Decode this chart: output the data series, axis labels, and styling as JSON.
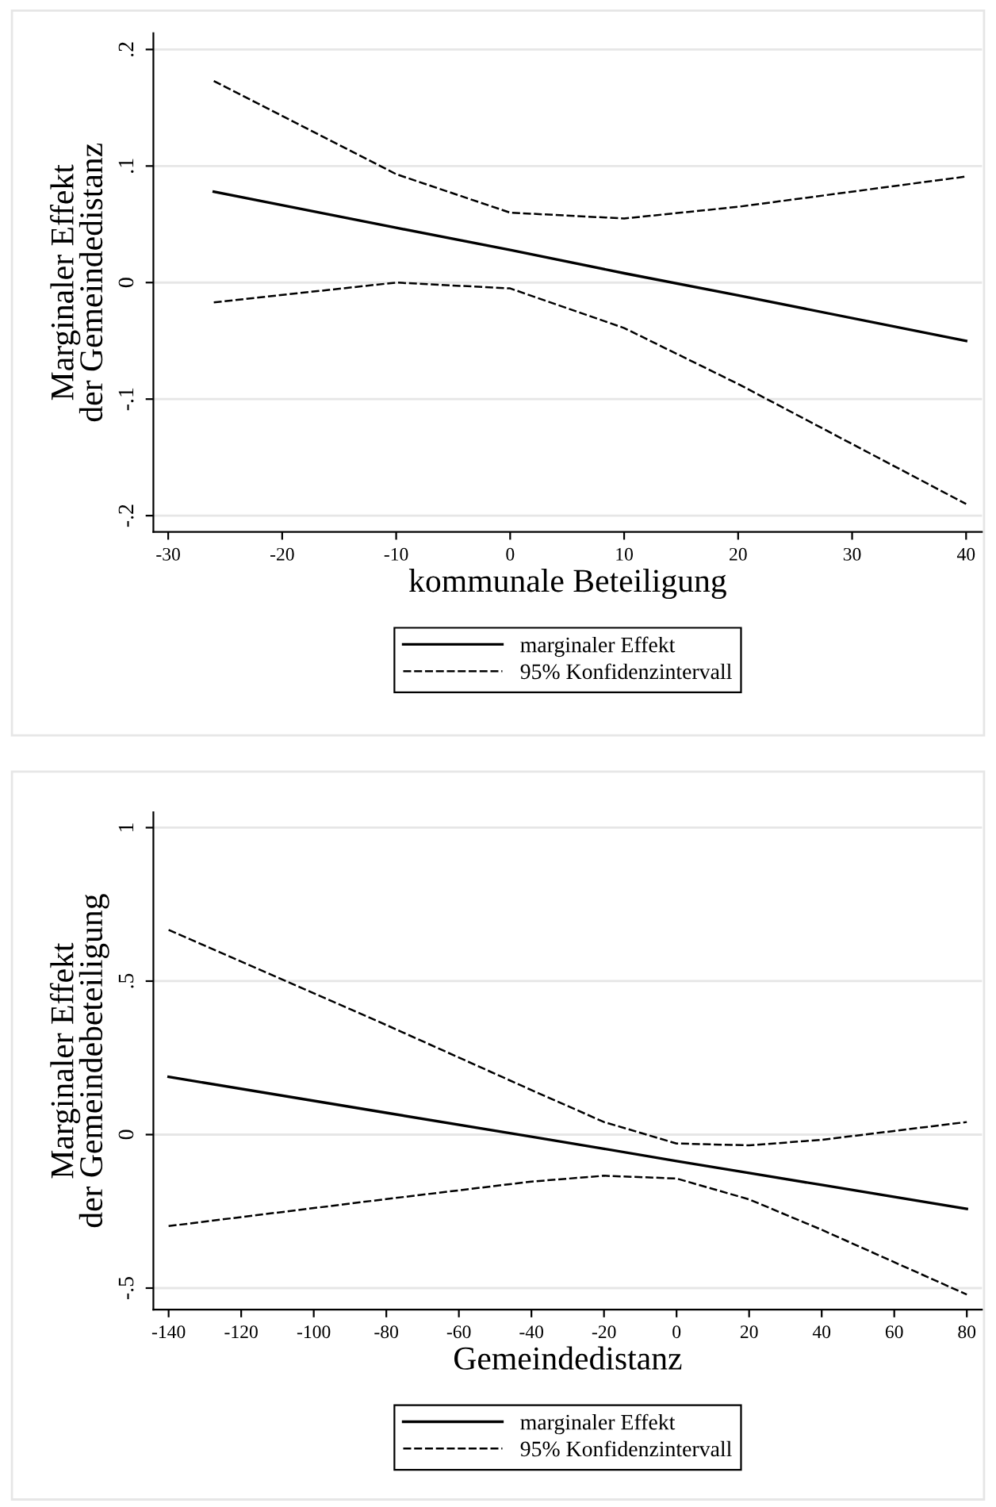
{
  "chart_data": [
    {
      "type": "line",
      "xlabel": "kommunale Beteiligung",
      "ylabel": "Marginaler Effekt\nder Gemeindedistanz",
      "xlim": [
        -31.3,
        41.4
      ],
      "ylim": [
        -0.214,
        0.214
      ],
      "xticks": [
        -30,
        -20,
        -10,
        0,
        10,
        20,
        30,
        40
      ],
      "yticks": [
        {
          "value": -0.2,
          "label": "-.2"
        },
        {
          "value": -0.1,
          "label": "-.1"
        },
        0,
        {
          "value": 0.1,
          "label": ".1"
        },
        {
          "value": 0.2,
          "label": ".2"
        }
      ],
      "grid": "y",
      "legend": "bottom",
      "series": [
        {
          "name": "marginaler Effekt",
          "color": "#000000",
          "line_style": "solid",
          "x": [
            -26,
            -10,
            0,
            10,
            20,
            40
          ],
          "values": [
            0.078,
            0.047,
            0.028,
            0.008,
            -0.011,
            -0.05
          ]
        },
        {
          "name": "95% Konfidenzintervall",
          "color": "#000000",
          "line_style": "dashed",
          "x": [
            -26,
            -10,
            0,
            10,
            20,
            40
          ],
          "values": [
            0.173,
            0.093,
            0.06,
            0.055,
            0.065,
            0.091
          ]
        },
        {
          "color": "#000000",
          "line_style": "dashed",
          "x": [
            -26,
            -10,
            0,
            10,
            20,
            40
          ],
          "values": [
            -0.017,
            0.0,
            -0.005,
            -0.039,
            -0.087,
            -0.19
          ]
        }
      ]
    },
    {
      "type": "line",
      "xlabel": "Gemeindedistanz",
      "ylabel": "Marginaler Effekt\nder Gemeindebeteiligung",
      "xlim": [
        -144.2,
        84.2
      ],
      "ylim": [
        -0.57,
        1.05
      ],
      "xticks": [
        -140,
        -120,
        -100,
        -80,
        -60,
        -40,
        -20,
        0,
        20,
        40,
        60,
        80
      ],
      "yticks": [
        {
          "value": -0.5,
          "label": "-.5"
        },
        0,
        {
          "value": 0.5,
          "label": ".5"
        },
        1
      ],
      "grid": "y",
      "legend": "bottom",
      "series": [
        {
          "name": "marginaler Effekt",
          "color": "#000000",
          "line_style": "solid",
          "x": [
            -140,
            -80,
            -40,
            -20,
            0,
            20,
            40,
            80
          ],
          "values": [
            0.188,
            0.071,
            -0.007,
            -0.046,
            -0.086,
            -0.125,
            -0.164,
            -0.242
          ]
        },
        {
          "name": "95% Konfidenzintervall",
          "color": "#000000",
          "line_style": "dashed",
          "x": [
            -140,
            -80,
            -40,
            -20,
            0,
            20,
            40,
            80
          ],
          "values": [
            0.667,
            0.357,
            0.145,
            0.041,
            -0.029,
            -0.035,
            -0.017,
            0.041
          ]
        },
        {
          "color": "#000000",
          "line_style": "dashed",
          "x": [
            -140,
            -80,
            -40,
            -20,
            0,
            20,
            40,
            80
          ],
          "values": [
            -0.298,
            -0.21,
            -0.153,
            -0.134,
            -0.143,
            -0.211,
            -0.31,
            -0.521
          ]
        }
      ]
    }
  ]
}
